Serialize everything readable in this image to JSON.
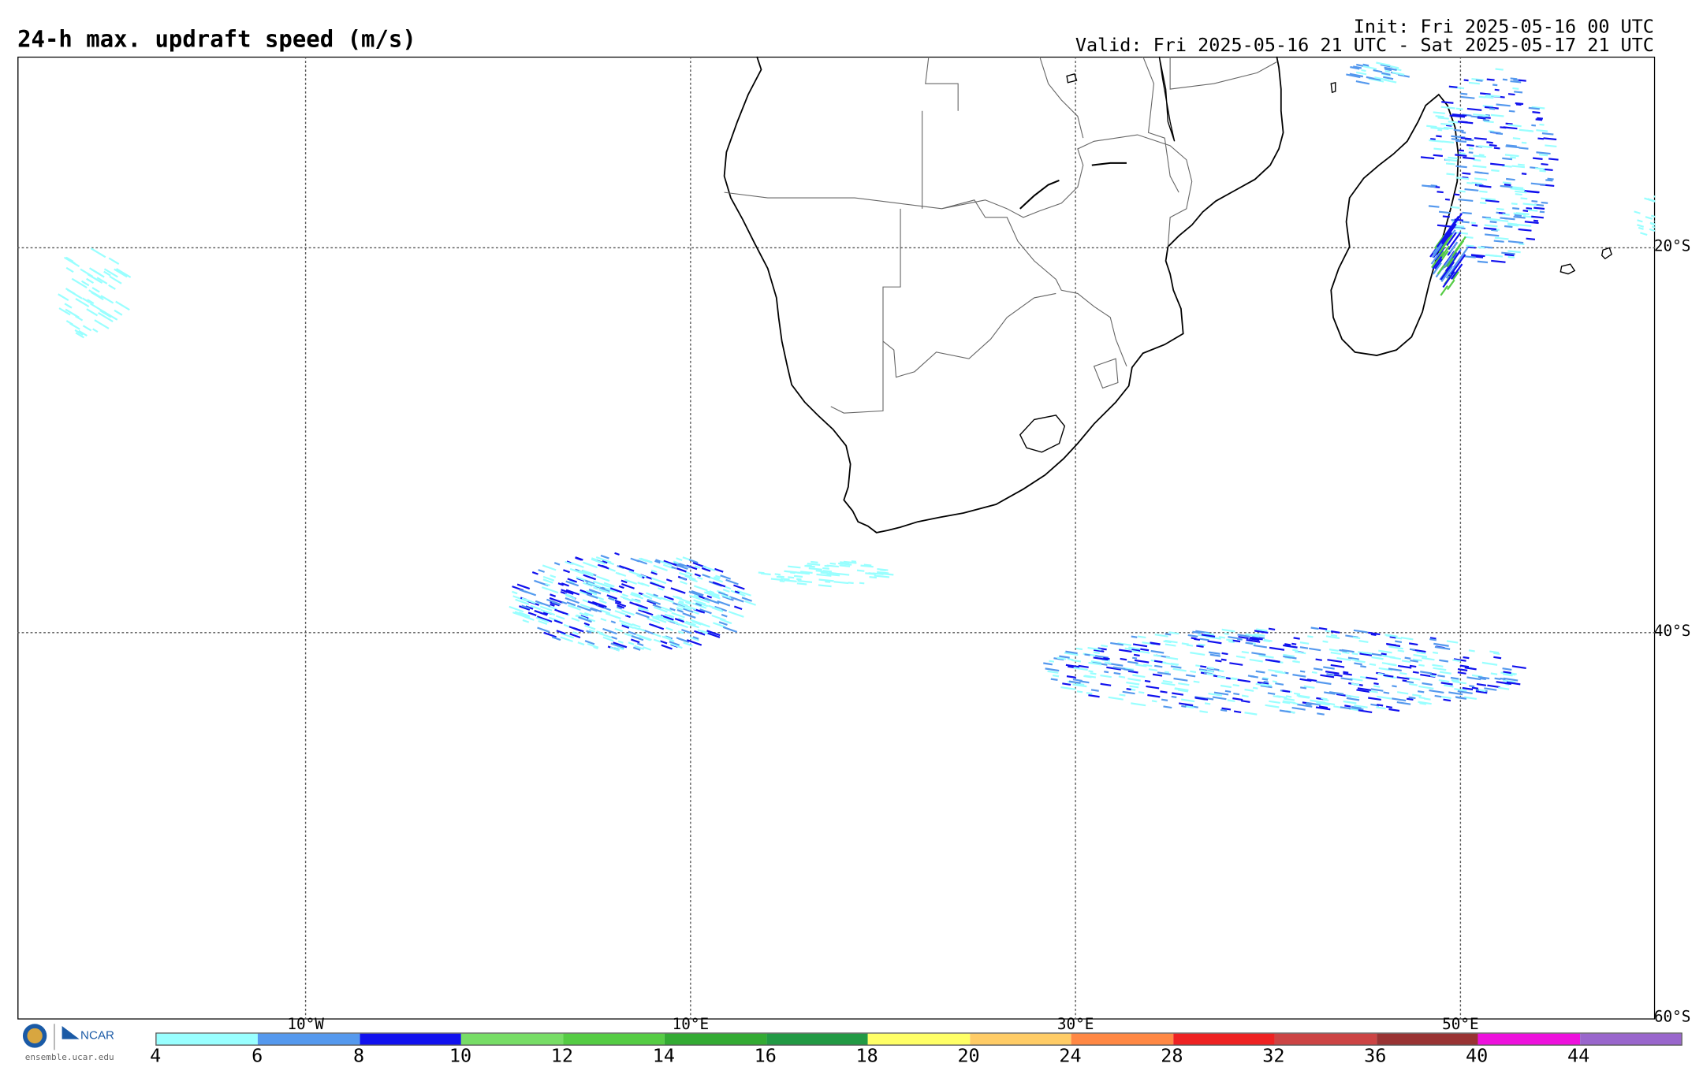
{
  "title": "24-h max. updraft speed (m/s)",
  "init": "Init: Fri 2025-05-16 00 UTC",
  "valid": "Valid: Fri 2025-05-16 21 UTC - Sat 2025-05-17 21 UTC",
  "lon_labels": [
    "10°W",
    "10°E",
    "30°E",
    "50°E"
  ],
  "lat_labels": [
    "20°S",
    "40°S",
    "60°S"
  ],
  "colorbar": {
    "ticks": [
      "4",
      "6",
      "8",
      "10",
      "12",
      "14",
      "16",
      "18",
      "20",
      "24",
      "28",
      "32",
      "36",
      "40",
      "44"
    ],
    "colors": [
      "#99ffff",
      "#5599ee",
      "#1111ee",
      "#77dd66",
      "#55cc44",
      "#33aa33",
      "#229944",
      "#ffff66",
      "#ffcc66",
      "#ff8844",
      "#ee2222",
      "#cc4444",
      "#993333",
      "#ee11dd",
      "#9966cc"
    ]
  },
  "logo": {
    "org": "NCAR",
    "url": "ensemble.ucar.edu"
  }
}
